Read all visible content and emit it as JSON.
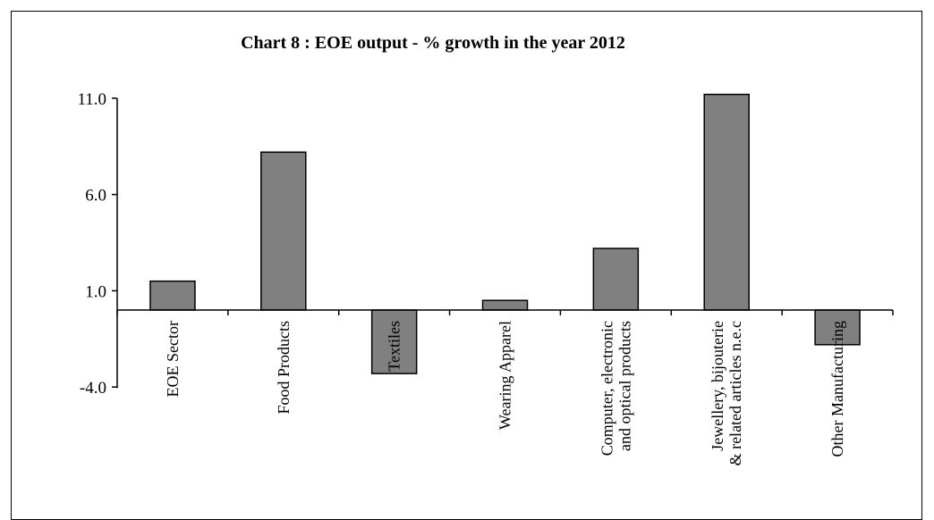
{
  "chart_data": {
    "type": "bar",
    "title": "Chart 8 : EOE output - % growth in the year 2012",
    "xlabel": "",
    "ylabel": "",
    "categories": [
      [
        "EOE Sector"
      ],
      [
        "Food Products"
      ],
      [
        "Textiles"
      ],
      [
        "Wearing Apparel"
      ],
      [
        "Computer, electronic",
        "and optical products"
      ],
      [
        "Jewellery, bijouterie",
        "& related articles n.e.c"
      ],
      [
        "Other Manufacturing"
      ]
    ],
    "values": [
      1.5,
      8.2,
      -3.3,
      0.5,
      3.2,
      11.2,
      -1.8
    ],
    "y_ticks": [
      "11.0",
      "6.0",
      "1.0",
      "-4.0"
    ],
    "y_tick_values": [
      11.0,
      6.0,
      1.0,
      -4.0
    ],
    "ylim": [
      -4.0,
      11.0
    ],
    "grid": false,
    "legend": "none",
    "bar_color": "#808080",
    "bar_stroke": "#000000"
  }
}
